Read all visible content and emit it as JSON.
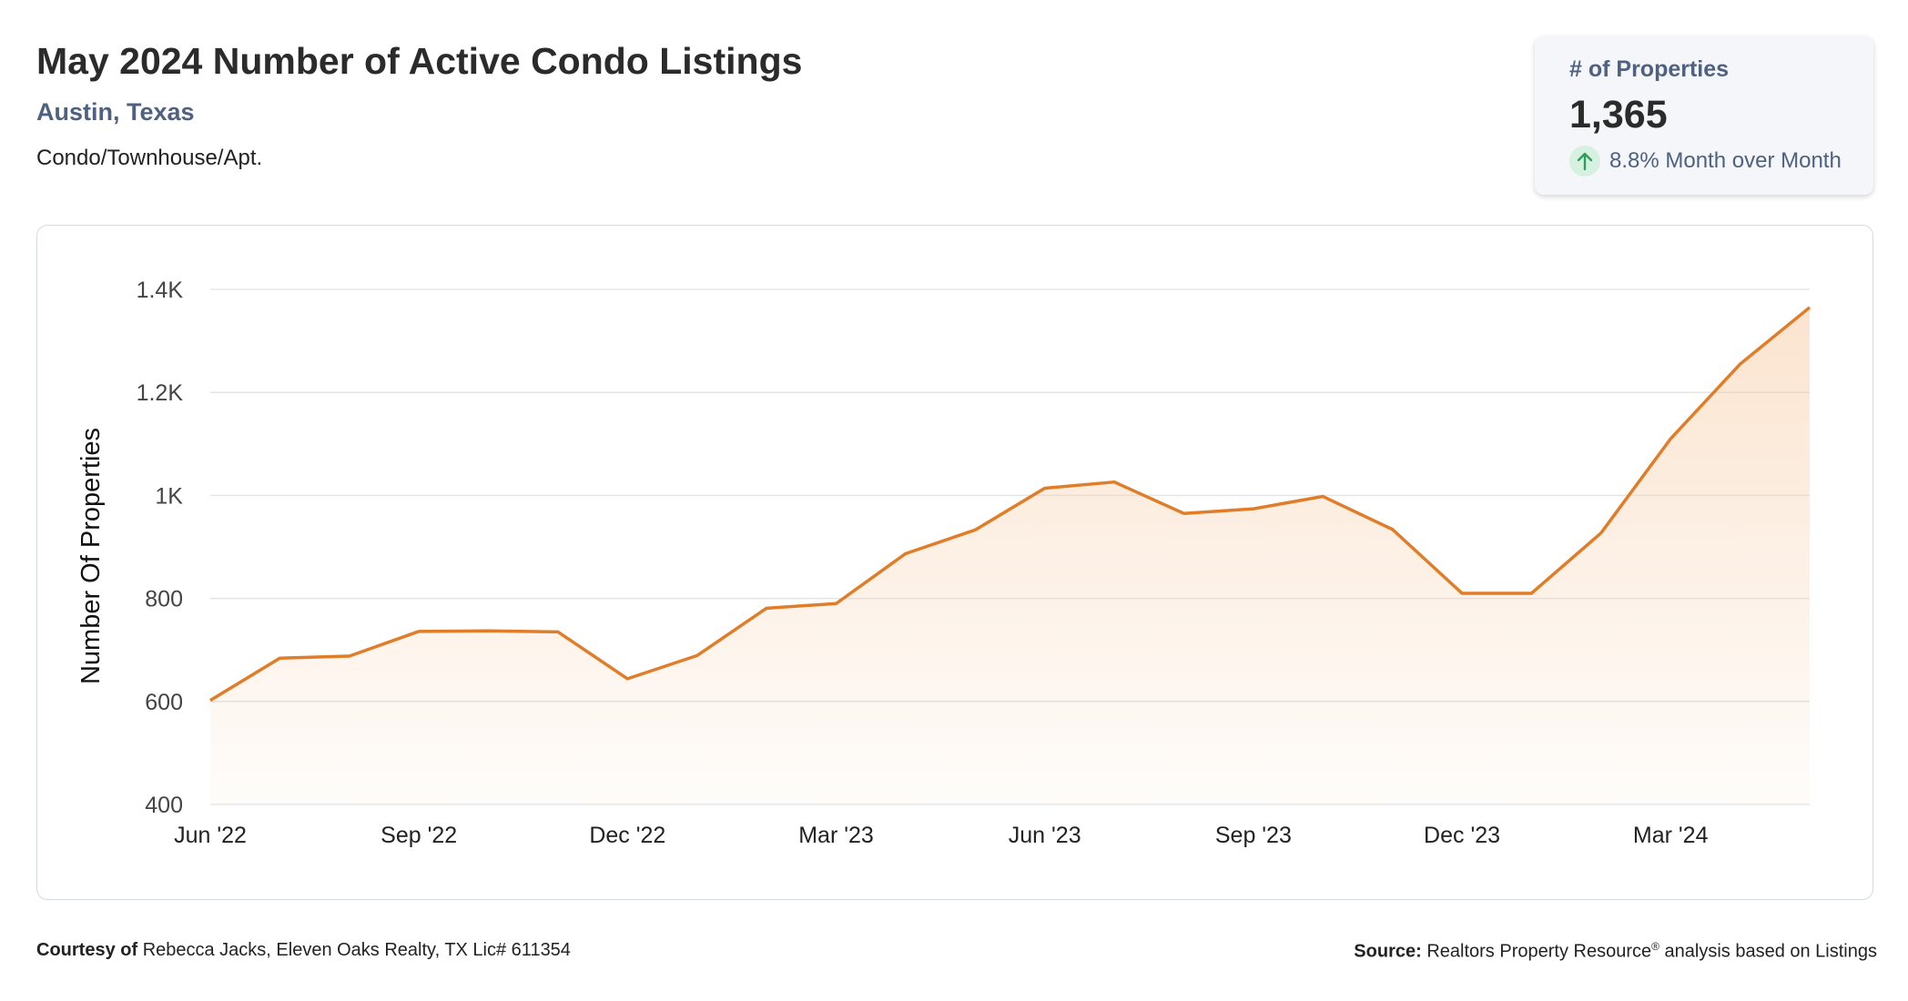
{
  "header": {
    "title": "May 2024 Number of Active Condo Listings",
    "location": "Austin, Texas",
    "property_type": "Condo/Townhouse/Apt."
  },
  "kpi": {
    "label": "# of Properties",
    "value": "1,365",
    "change": "8.8% Month over Month",
    "direction_icon": "arrow-up-icon",
    "up_color": "#2e9e5b"
  },
  "footer": {
    "courtesy_label": "Courtesy of",
    "courtesy_text": "Rebecca Jacks, Eleven Oaks Realty, TX Lic# 611354",
    "source_label": "Source:",
    "source_text": "Realtors Property Resource",
    "source_mark": "®",
    "source_suffix": "analysis based on Listings"
  },
  "colors": {
    "line": "#e07d28",
    "fill_top": "#f7c9a0",
    "grid": "#e3e5e8"
  },
  "chart_data": {
    "type": "area",
    "ylabel": "Number Of Properties",
    "xlabel": "",
    "ylim": [
      400,
      1400
    ],
    "yticks": [
      400,
      600,
      800,
      1000,
      1200,
      1400
    ],
    "ytick_labels": [
      "400",
      "600",
      "800",
      "1K",
      "1.2K",
      "1.4K"
    ],
    "x": [
      "2022-06",
      "2022-07",
      "2022-08",
      "2022-09",
      "2022-10",
      "2022-11",
      "2022-12",
      "2023-01",
      "2023-02",
      "2023-03",
      "2023-04",
      "2023-05",
      "2023-06",
      "2023-07",
      "2023-08",
      "2023-09",
      "2023-10",
      "2023-11",
      "2023-12",
      "2024-01",
      "2024-02",
      "2024-03",
      "2024-04",
      "2024-05"
    ],
    "xtick_labels": [
      "Jun '22",
      "",
      "",
      "Sep '22",
      "",
      "",
      "Dec '22",
      "",
      "",
      "Mar '23",
      "",
      "",
      "Jun '23",
      "",
      "",
      "Sep '23",
      "",
      "",
      "Dec '23",
      "",
      "",
      "Mar '24",
      "",
      ""
    ],
    "series": [
      {
        "values": [
          602,
          684,
          688,
          736,
          737,
          735,
          644,
          689,
          781,
          790,
          887,
          933,
          1014,
          1026,
          965,
          974,
          998,
          934,
          810,
          810,
          927,
          1110,
          1255,
          1365
        ]
      }
    ],
    "grid": true,
    "legend": "none"
  }
}
